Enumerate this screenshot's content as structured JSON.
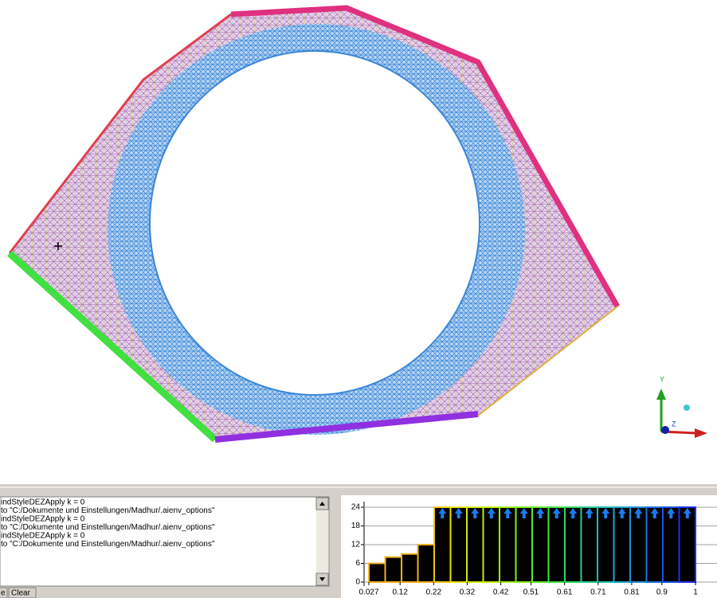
{
  "viewport": {
    "axis_labels": [
      "Y",
      "Z"
    ]
  },
  "console": {
    "lines": [
      "indStyleDEZApply k = 0",
      "to \"C:/Dokumente und Einstellungen/Madhur/.aienv_options\"",
      "indStyleDEZApply k = 0",
      "to \"C:/Dokumente und Einstellungen/Madhur/.aienv_options\"",
      "indStyleDEZApply k = 0",
      "to \"C:/Dokumente und Einstellungen/Madhur/.aienv_options\""
    ],
    "buttons": [
      "e",
      "Clear"
    ]
  },
  "chart_data": {
    "type": "histogram",
    "bins": [
      0.027,
      0.0757,
      0.1244,
      0.173,
      0.2216,
      0.2703,
      0.3189,
      0.3676,
      0.4162,
      0.4649,
      0.5135,
      0.5622,
      0.6108,
      0.6595,
      0.7081,
      0.7568,
      0.8054,
      0.8541,
      0.9027,
      0.9514,
      1
    ],
    "values": [
      6,
      8,
      9,
      12,
      24,
      24,
      24,
      24,
      24,
      24,
      24,
      24,
      24,
      24,
      24,
      24,
      24,
      24,
      24,
      24
    ],
    "colors": [
      "#f0b020",
      "#f0b020",
      "#f0b020",
      "#f0b020",
      "#f0c800",
      "#e8e000",
      "#d8e800",
      "#c0ec00",
      "#a0ee10",
      "#80ea20",
      "#60e630",
      "#40e040",
      "#30d860",
      "#28cc90",
      "#20c0b0",
      "#20a8c8",
      "#2090d8",
      "#2070e0",
      "#2050e8",
      "#2030f0"
    ],
    "xlim": [
      0.027,
      1
    ],
    "xticks": [
      0.027,
      0.12,
      0.22,
      0.32,
      0.42,
      0.51,
      0.61,
      0.71,
      0.81,
      0.9,
      1
    ],
    "ylim": [
      0,
      24
    ],
    "yticks": [
      0,
      6,
      12,
      18,
      24
    ],
    "grid": true
  }
}
